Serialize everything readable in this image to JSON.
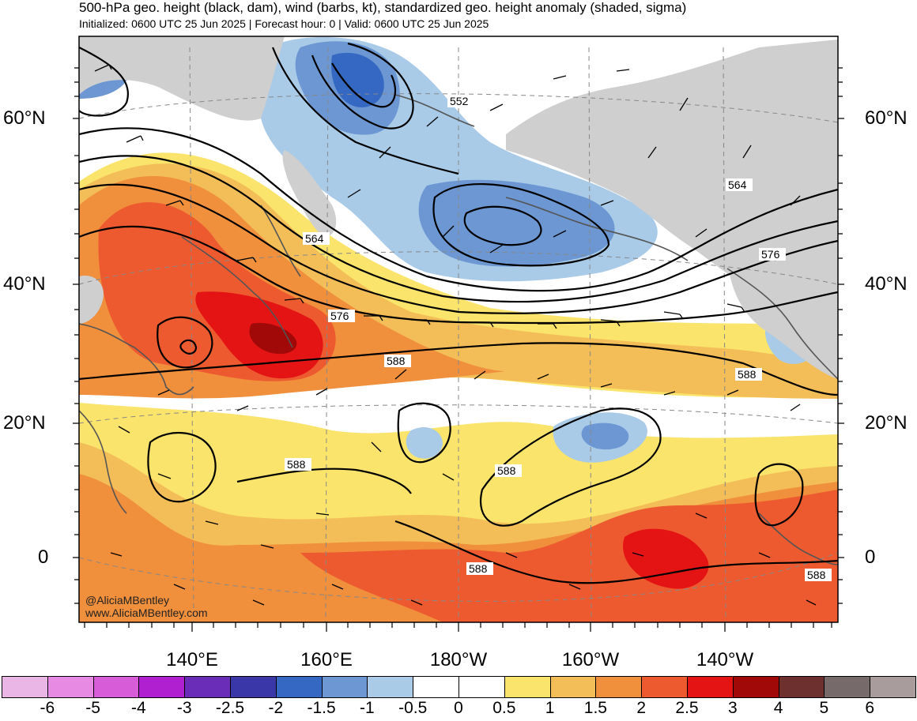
{
  "header": {
    "title": "500-hPa geo. height (black, dam), wind (barbs, kt), standardized geo. height anomaly (shaded, sigma)",
    "subtitle": "Initialized: 0600 UTC 25 Jun 2025 | Forecast hour: 0 | Valid: 0600 UTC 25 Jun 2025"
  },
  "map": {
    "lat_labels": [
      "60°N",
      "40°N",
      "20°N",
      "0"
    ],
    "lon_labels": [
      "140°E",
      "160°E",
      "180°W",
      "160°W",
      "140°W"
    ],
    "contour_labels": [
      "552",
      "564",
      "564",
      "576",
      "576",
      "588",
      "588",
      "588",
      "588",
      "588",
      "588"
    ],
    "credit_handle": "@AliciaMBentley",
    "credit_site": "www.AliciaMBentley.com"
  },
  "colorbar": {
    "labels": [
      "-6",
      "-5",
      "-4",
      "-3",
      "-2.5",
      "-2",
      "-1.5",
      "-1",
      "-0.5",
      "0",
      "0.5",
      "1",
      "1.5",
      "2",
      "2.5",
      "3",
      "4",
      "5",
      "6"
    ],
    "colors": [
      "#e9b6e6",
      "#e68ae3",
      "#d65cd8",
      "#b01fd0",
      "#6a2db8",
      "#3a37a8",
      "#3468c2",
      "#6c97d3",
      "#a9cbe8",
      "#ffffff",
      "#ffffff",
      "#fae46b",
      "#f3be58",
      "#f08f3c",
      "#ee5a2f",
      "#e41414",
      "#a10808",
      "#6e2f2f",
      "#766a6a",
      "#a89c9c"
    ]
  },
  "colors": {
    "land_gray": "#cfcfcf",
    "coastline": "#555555",
    "contour": "#000000"
  }
}
